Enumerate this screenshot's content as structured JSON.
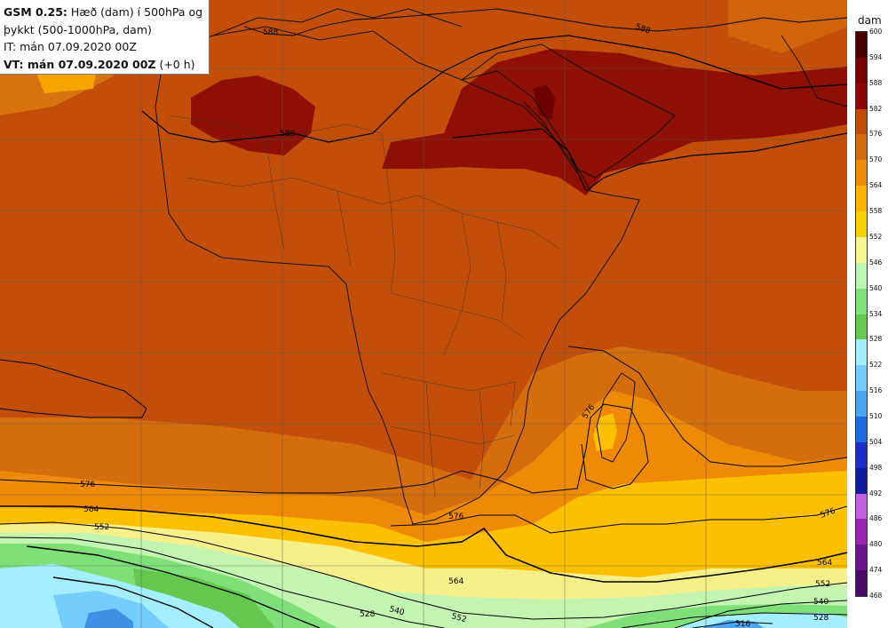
{
  "header": {
    "model": "GSM 0.25:",
    "description_line1": "Hæð (dam) í 500hPa og",
    "description_line2": "þykkt (500-1000hPa, dam)",
    "initial_time": "IT: mán 07.09.2020 00Z",
    "valid_time_label": "VT: mán 07.09.2020 00Z",
    "valid_time_offset": "(+0 h)"
  },
  "legend": {
    "unit": "dam",
    "ticks": [
      "600",
      "594",
      "588",
      "582",
      "576",
      "570",
      "564",
      "558",
      "552",
      "546",
      "540",
      "534",
      "528",
      "522",
      "516",
      "510",
      "504",
      "498",
      "492",
      "486",
      "480",
      "474",
      "468"
    ],
    "colors": [
      "#250000",
      "#4a0000",
      "#7a0000",
      "#8e0505",
      "#c04d0a",
      "#d26a10",
      "#ef8b06",
      "#ffb400",
      "#f6d100",
      "#f9f592",
      "#b9f7b2",
      "#7ee37a",
      "#66c94f",
      "#a3efff",
      "#74cdfc",
      "#4aa5f2",
      "#1f6be0",
      "#1d2ec4",
      "#101d9a",
      "#c25ee0",
      "#9b25b0",
      "#6d1590",
      "#4b0a6a"
    ]
  },
  "map": {
    "contour_labels": [
      "588",
      "588",
      "588",
      "576",
      "576",
      "576",
      "576",
      "564",
      "564",
      "564",
      "552",
      "552",
      "552",
      "540",
      "540",
      "528",
      "528",
      "516"
    ]
  }
}
